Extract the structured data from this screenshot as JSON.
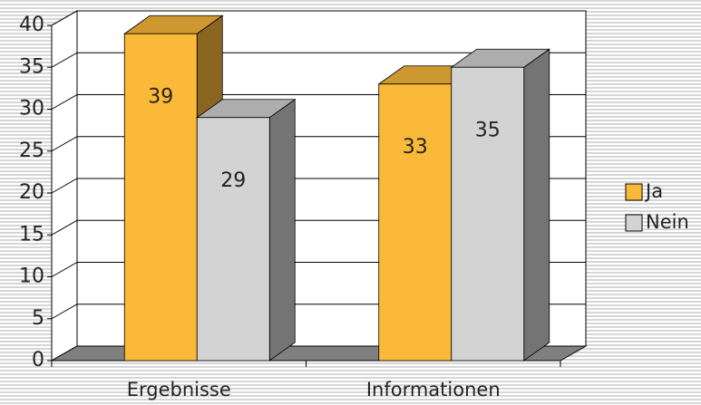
{
  "chart_data": {
    "type": "bar3d",
    "categories": [
      "Ergebnisse",
      "Informationen"
    ],
    "series": [
      {
        "name": "Ja",
        "color": "#fbb93a",
        "values": [
          39,
          33
        ]
      },
      {
        "name": "Nein",
        "color": "#d3d3d3",
        "values": [
          29,
          35
        ]
      }
    ],
    "ylim": [
      0,
      40
    ],
    "yticks": [
      0,
      5,
      10,
      15,
      20,
      25,
      30,
      35,
      40
    ],
    "grid": true,
    "legend": "right"
  }
}
